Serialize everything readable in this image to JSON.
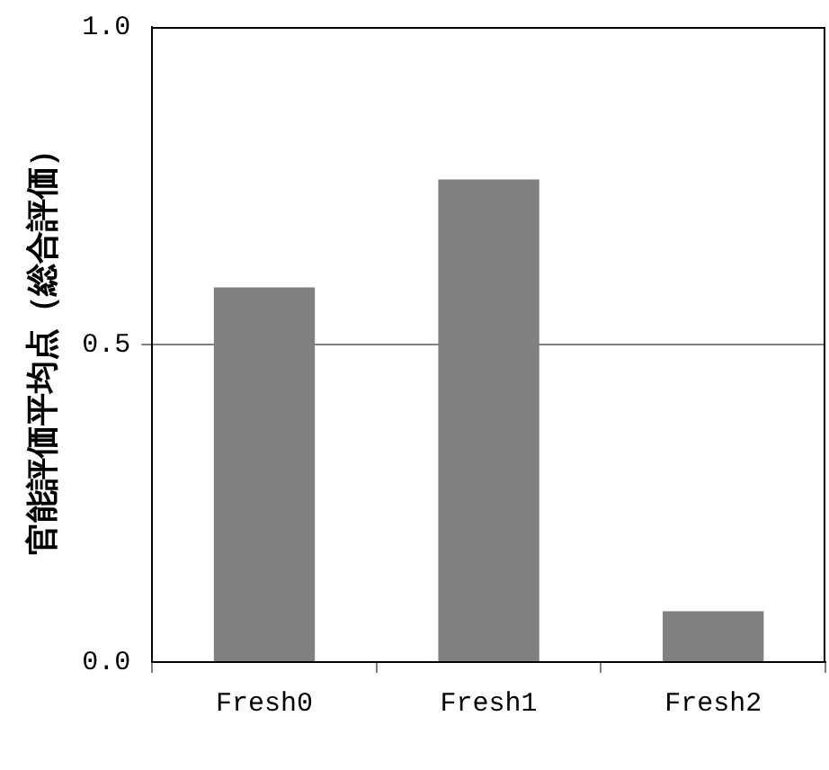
{
  "chart_data": {
    "type": "bar",
    "ylabel": "官能評価平均点（総合評価）",
    "categories": [
      "Fresh0",
      "Fresh1",
      "Fresh2"
    ],
    "values": [
      0.59,
      0.76,
      0.08
    ],
    "color": "#808080",
    "ylim": [
      0,
      1
    ],
    "yticks": [
      {
        "value": 0,
        "label": "0.0"
      },
      {
        "value": 0.5,
        "label": "0.5"
      },
      {
        "value": 1,
        "label": "1.0"
      }
    ],
    "grid": "y",
    "legend": false
  }
}
